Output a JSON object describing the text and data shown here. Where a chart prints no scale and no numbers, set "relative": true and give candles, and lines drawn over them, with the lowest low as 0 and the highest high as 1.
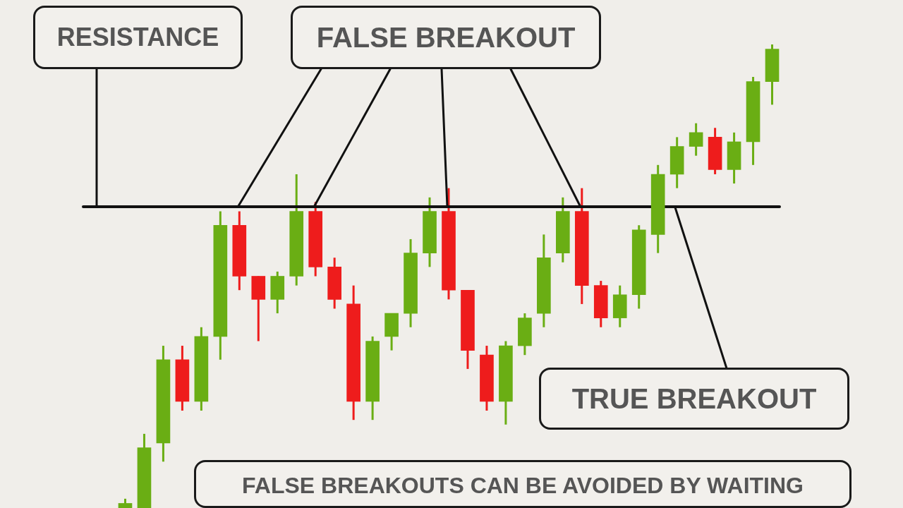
{
  "chart_data": {
    "type": "candlestick",
    "relative": true,
    "categories": [
      null,
      null,
      null,
      null,
      null,
      null,
      null,
      null,
      null,
      null,
      null,
      null,
      null,
      null,
      null,
      null,
      null,
      null,
      null,
      null,
      null,
      null,
      null,
      null,
      null,
      null,
      null,
      null,
      null,
      null,
      null,
      null,
      null,
      null,
      null
    ],
    "ohlc": [
      [
        0,
        0.02,
        0,
        0.01
      ],
      [
        0,
        0.16,
        0,
        0.13
      ],
      [
        0.14,
        0.35,
        0.1,
        0.32
      ],
      [
        0.32,
        0.35,
        0.21,
        0.23
      ],
      [
        0.23,
        0.39,
        0.21,
        0.37
      ],
      [
        0.37,
        0.64,
        0.32,
        0.61
      ],
      [
        0.61,
        0.64,
        0.47,
        0.5
      ],
      [
        0.5,
        0.5,
        0.36,
        0.45
      ],
      [
        0.45,
        0.51,
        0.42,
        0.5
      ],
      [
        0.5,
        0.72,
        0.48,
        0.64
      ],
      [
        0.64,
        0.66,
        0.5,
        0.52
      ],
      [
        0.52,
        0.54,
        0.43,
        0.45
      ],
      [
        0.44,
        0.48,
        0.19,
        0.23
      ],
      [
        0.23,
        0.37,
        0.19,
        0.36
      ],
      [
        0.37,
        0.42,
        0.34,
        0.42
      ],
      [
        0.42,
        0.58,
        0.39,
        0.55
      ],
      [
        0.55,
        0.67,
        0.52,
        0.64
      ],
      [
        0.64,
        0.69,
        0.45,
        0.47
      ],
      [
        0.47,
        0.47,
        0.3,
        0.34
      ],
      [
        0.33,
        0.35,
        0.21,
        0.23
      ],
      [
        0.23,
        0.36,
        0.18,
        0.35
      ],
      [
        0.35,
        0.42,
        0.33,
        0.41
      ],
      [
        0.42,
        0.59,
        0.39,
        0.54
      ],
      [
        0.55,
        0.67,
        0.53,
        0.64
      ],
      [
        0.64,
        0.69,
        0.44,
        0.48
      ],
      [
        0.48,
        0.49,
        0.39,
        0.41
      ],
      [
        0.41,
        0.48,
        0.39,
        0.46
      ],
      [
        0.46,
        0.61,
        0.43,
        0.6
      ],
      [
        0.59,
        0.74,
        0.55,
        0.72
      ],
      [
        0.72,
        0.8,
        0.69,
        0.78
      ],
      [
        0.78,
        0.83,
        0.76,
        0.81
      ],
      [
        0.8,
        0.82,
        0.72,
        0.73
      ],
      [
        0.73,
        0.81,
        0.7,
        0.79
      ],
      [
        0.79,
        0.93,
        0.74,
        0.92
      ],
      [
        0.92,
        1,
        0.87,
        0.99
      ]
    ],
    "colors": [
      "#6aae14",
      "#6aae14",
      "#6aae14",
      "#ee1c1c",
      "#6aae14",
      "#6aae14",
      "#ee1c1c",
      "#ee1c1c",
      "#6aae14",
      "#6aae14",
      "#ee1c1c",
      "#ee1c1c",
      "#ee1c1c",
      "#6aae14",
      "#6aae14",
      "#6aae14",
      "#6aae14",
      "#ee1c1c",
      "#ee1c1c",
      "#ee1c1c",
      "#6aae14",
      "#6aae14",
      "#6aae14",
      "#6aae14",
      "#ee1c1c",
      "#ee1c1c",
      "#6aae14",
      "#6aae14",
      "#6aae14",
      "#6aae14",
      "#6aae14",
      "#ee1c1c",
      "#6aae14",
      "#6aae14",
      "#6aae14"
    ],
    "ref_lines": [
      {
        "axis": "y",
        "value": 0.65,
        "label": "RESISTANCE"
      }
    ],
    "annotations": [
      "FALSE BREAKOUT",
      "TRUE BREAKOUT",
      "FALSE BREAKOUTS CAN BE AVOIDED BY WAITING"
    ]
  }
}
